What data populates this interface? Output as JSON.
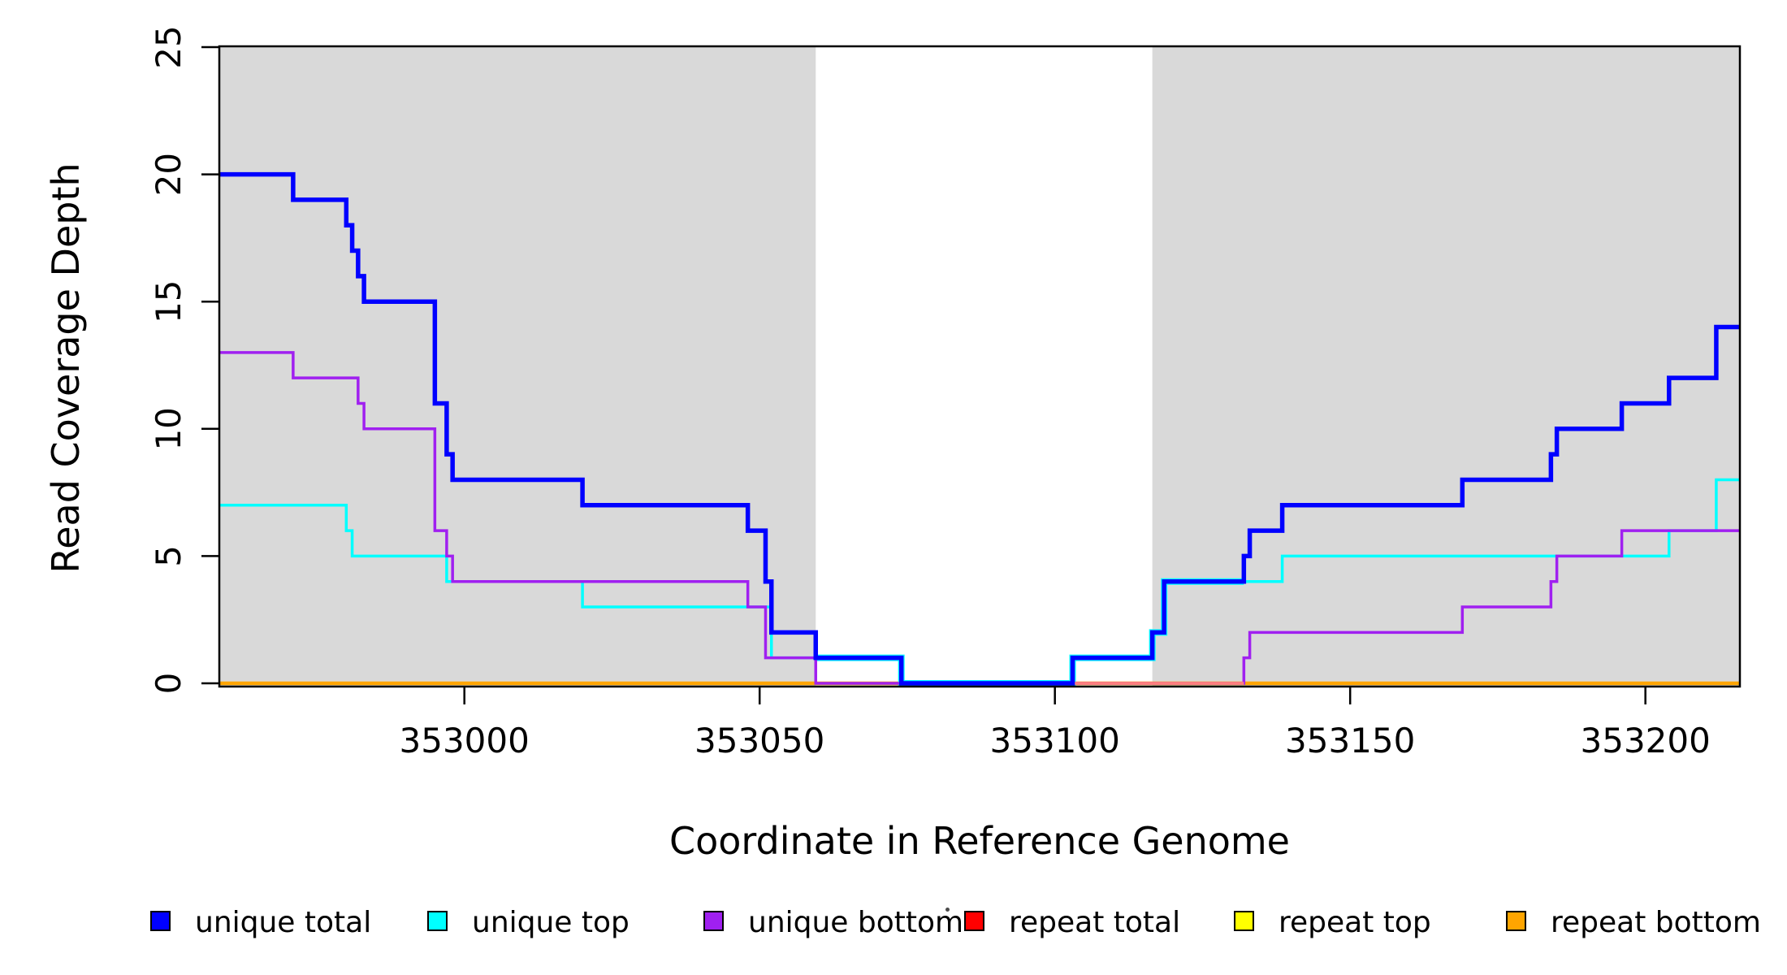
{
  "chart_data": {
    "type": "line",
    "subtype": "step-after",
    "title": "",
    "xlabel": "Coordinate in Reference Genome",
    "ylabel": "Read Coverage Depth",
    "xlim": [
      352958.5,
      353216
    ],
    "ylim": [
      0,
      25
    ],
    "x_ticks": [
      353000,
      353050,
      353100,
      353150,
      353200
    ],
    "y_ticks": [
      0,
      5,
      10,
      15,
      20,
      25
    ],
    "grid": false,
    "background_color": "#ffffff",
    "shade_color": "#d9d9d9",
    "axis_color": "#000000",
    "shaded_x_regions": [
      [
        352958.5,
        353059.5
      ],
      [
        353116.5,
        353216
      ]
    ],
    "series": [
      {
        "name": "repeat top",
        "color": "#ffff00",
        "width": 3,
        "points": [
          [
            352958.5,
            0
          ]
        ]
      },
      {
        "name": "repeat total",
        "color": "#ff0000",
        "width": 3,
        "points": [
          [
            352958.5,
            0
          ]
        ]
      },
      {
        "name": "repeat bottom",
        "color": "#ffa500",
        "width": 4.5,
        "points": [
          [
            352958.5,
            0
          ]
        ]
      },
      {
        "name": "unique top",
        "color": "#00ffff",
        "width": 3.5,
        "points": [
          [
            352958.5,
            7
          ],
          [
            352980,
            6
          ],
          [
            352981,
            5
          ],
          [
            352997,
            4
          ],
          [
            353020,
            3
          ],
          [
            353052,
            1
          ],
          [
            353074,
            0
          ],
          [
            353103,
            1
          ],
          [
            353116.5,
            2
          ],
          [
            353118.5,
            4
          ],
          [
            353138.5,
            5
          ],
          [
            353204,
            6
          ],
          [
            353212,
            8
          ]
        ]
      },
      {
        "name": "unique bottom",
        "color": "#a020f0",
        "width": 3.5,
        "points": [
          [
            352958.5,
            13
          ],
          [
            352971,
            12
          ],
          [
            352982,
            11
          ],
          [
            352983,
            10
          ],
          [
            352995,
            6
          ],
          [
            352997,
            5
          ],
          [
            352998,
            4
          ],
          [
            353048,
            3
          ],
          [
            353051,
            1
          ],
          [
            353059.5,
            0
          ],
          [
            353132,
            1
          ],
          [
            353133,
            2
          ],
          [
            353169,
            3
          ],
          [
            353184,
            4
          ],
          [
            353185,
            5
          ],
          [
            353196,
            6
          ]
        ]
      },
      {
        "name": "unique total",
        "color": "#0000ff",
        "width": 5.5,
        "points": [
          [
            352958.5,
            20
          ],
          [
            352971,
            19
          ],
          [
            352980,
            18
          ],
          [
            352981,
            17
          ],
          [
            352982,
            16
          ],
          [
            352983,
            15
          ],
          [
            352995,
            11
          ],
          [
            352997,
            9
          ],
          [
            352998,
            8
          ],
          [
            353020,
            7
          ],
          [
            353048,
            6
          ],
          [
            353051,
            4
          ],
          [
            353052,
            2
          ],
          [
            353059.5,
            1
          ],
          [
            353074,
            0
          ],
          [
            353103,
            1
          ],
          [
            353116.5,
            2
          ],
          [
            353118.5,
            4
          ],
          [
            353132,
            5
          ],
          [
            353133,
            6
          ],
          [
            353138.5,
            7
          ],
          [
            353169,
            8
          ],
          [
            353184,
            9
          ],
          [
            353185,
            10
          ],
          [
            353196,
            11
          ],
          [
            353204,
            12
          ],
          [
            353212,
            14
          ]
        ]
      }
    ],
    "zero_line_red_overlay": {
      "x_range": [
        353103,
        353132
      ],
      "color": "#ff7f7f",
      "width": 3.5
    },
    "cyan_underlay_x_range": [
      353059.5,
      353132
    ],
    "legend": {
      "position": "bottom",
      "items": [
        {
          "label": "unique total",
          "color": "#0000ff"
        },
        {
          "label": "unique top",
          "color": "#00ffff"
        },
        {
          "label": "unique bottom",
          "color": "#a020f0"
        },
        {
          "label": "repeat total",
          "color": "#ff0000"
        },
        {
          "label": "repeat top",
          "color": "#ffff00"
        },
        {
          "label": "repeat bottom",
          "color": "#ffa500"
        }
      ]
    }
  }
}
